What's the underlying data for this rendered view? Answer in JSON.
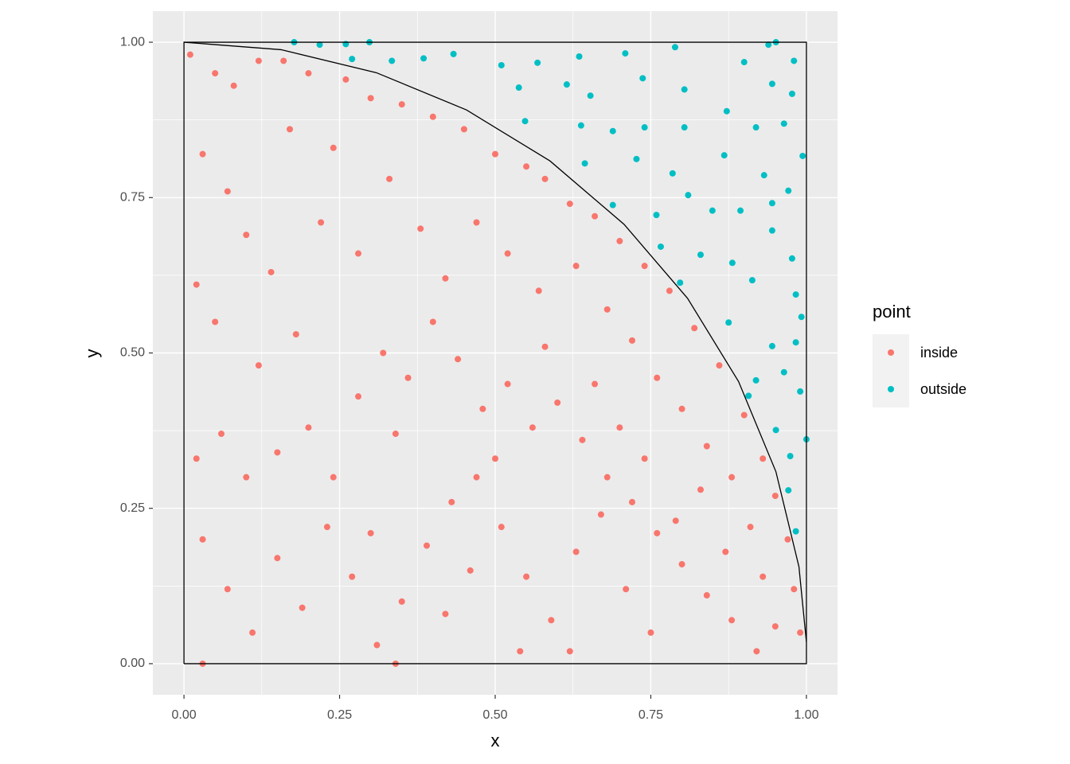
{
  "chart_data": {
    "type": "scatter",
    "x_label": "x",
    "y_label": "y",
    "xlim": [
      -0.05,
      1.05
    ],
    "ylim": [
      -0.05,
      1.05
    ],
    "xticks": [
      {
        "value": 0,
        "label": "0.00"
      },
      {
        "value": 0.25,
        "label": "0.25"
      },
      {
        "value": 0.5,
        "label": "0.50"
      },
      {
        "value": 0.75,
        "label": "0.75"
      },
      {
        "value": 1,
        "label": "1.00"
      }
    ],
    "yticks": [
      {
        "value": 0,
        "label": "0.00"
      },
      {
        "value": 0.25,
        "label": "0.25"
      },
      {
        "value": 0.5,
        "label": "0.50"
      },
      {
        "value": 0.75,
        "label": "0.75"
      },
      {
        "value": 1,
        "label": "1.00"
      }
    ],
    "x_minor_ticks": [
      0.125,
      0.375,
      0.625,
      0.875
    ],
    "y_minor_ticks": [
      0.125,
      0.375,
      0.625,
      0.875
    ],
    "grid": true,
    "legend_title": "point",
    "legend_position": "right",
    "paths": [
      {
        "color": "#000000",
        "x": [
          0,
          1,
          1,
          0,
          0
        ],
        "y": [
          0,
          0,
          1,
          1,
          0
        ]
      },
      {
        "color": "#000000",
        "x": [
          0,
          0.156,
          0.309,
          0.454,
          0.588,
          0.707,
          0.809,
          0.891,
          0.951,
          0.988,
          1
        ],
        "y": [
          1,
          0.988,
          0.951,
          0.891,
          0.809,
          0.707,
          0.588,
          0.454,
          0.309,
          0.156,
          0.035
        ]
      }
    ],
    "series": [
      {
        "name": "inside",
        "color": "#F8766D",
        "x": [
          0.01,
          0.05,
          0.08,
          0.12,
          0.16,
          0.2,
          0.26,
          0.3,
          0.35,
          0.4,
          0.45,
          0.5,
          0.55,
          0.58,
          0.62,
          0.66,
          0.7,
          0.74,
          0.78,
          0.82,
          0.86,
          0.9,
          0.93,
          0.95,
          0.97,
          0.98,
          0.99,
          0.03,
          0.07,
          0.1,
          0.14,
          0.02,
          0.05,
          0.12,
          0.18,
          0.22,
          0.28,
          0.33,
          0.24,
          0.17,
          0.38,
          0.42,
          0.47,
          0.52,
          0.57,
          0.63,
          0.68,
          0.72,
          0.76,
          0.8,
          0.84,
          0.88,
          0.91,
          0.93,
          0.95,
          0.02,
          0.06,
          0.1,
          0.15,
          0.2,
          0.24,
          0.28,
          0.32,
          0.36,
          0.4,
          0.44,
          0.48,
          0.52,
          0.56,
          0.6,
          0.64,
          0.68,
          0.72,
          0.76,
          0.8,
          0.84,
          0.88,
          0.92,
          0.03,
          0.07,
          0.11,
          0.15,
          0.19,
          0.23,
          0.27,
          0.31,
          0.35,
          0.39,
          0.43,
          0.47,
          0.51,
          0.55,
          0.59,
          0.63,
          0.67,
          0.71,
          0.75,
          0.79,
          0.83,
          0.87,
          0.3,
          0.34,
          0.42,
          0.46,
          0.5,
          0.58,
          0.62,
          0.66,
          0.7,
          0.74,
          0.54,
          0.34,
          0.03
        ],
        "values": [
          0.98,
          0.95,
          0.93,
          0.97,
          0.97,
          0.95,
          0.94,
          0.91,
          0.9,
          0.88,
          0.86,
          0.82,
          0.8,
          0.78,
          0.74,
          0.72,
          0.68,
          0.64,
          0.6,
          0.54,
          0.48,
          0.4,
          0.33,
          0.27,
          0.2,
          0.12,
          0.05,
          0.82,
          0.76,
          0.69,
          0.63,
          0.61,
          0.55,
          0.48,
          0.53,
          0.71,
          0.66,
          0.78,
          0.83,
          0.86,
          0.7,
          0.62,
          0.71,
          0.66,
          0.6,
          0.64,
          0.57,
          0.52,
          0.46,
          0.41,
          0.35,
          0.3,
          0.22,
          0.14,
          0.06,
          0.33,
          0.37,
          0.3,
          0.34,
          0.38,
          0.3,
          0.43,
          0.5,
          0.46,
          0.55,
          0.49,
          0.41,
          0.45,
          0.38,
          0.42,
          0.36,
          0.3,
          0.26,
          0.21,
          0.16,
          0.11,
          0.07,
          0.02,
          0.2,
          0.12,
          0.05,
          0.17,
          0.09,
          0.22,
          0.14,
          0.03,
          0.1,
          0.19,
          0.26,
          0.3,
          0.22,
          0.14,
          0.07,
          0.18,
          0.24,
          0.12,
          0.05,
          0.23,
          0.28,
          0.18,
          0.21,
          0.37,
          0.08,
          0.15,
          0.33,
          0.51,
          0.02,
          0.45,
          0.38,
          0.33,
          0.02,
          0.0,
          0.0
        ]
      },
      {
        "name": "outside",
        "color": "#00BFC4",
        "x": [
          0.177,
          0.218,
          0.26,
          0.298,
          0.27,
          0.334,
          0.385,
          0.433,
          0.51,
          0.568,
          0.635,
          0.709,
          0.789,
          0.939,
          0.951,
          0.98,
          0.9,
          0.538,
          0.615,
          0.653,
          0.737,
          0.804,
          0.872,
          0.945,
          0.977,
          0.548,
          0.638,
          0.689,
          0.74,
          0.804,
          0.919,
          0.964,
          0.644,
          0.727,
          0.785,
          0.868,
          0.932,
          0.994,
          0.689,
          0.759,
          0.81,
          0.849,
          0.894,
          0.945,
          0.971,
          0.766,
          0.83,
          0.881,
          0.945,
          0.977,
          0.797,
          0.913,
          0.983,
          0.875,
          0.992,
          0.945,
          0.983,
          0.919,
          0.964,
          0.907,
          0.99,
          1.0,
          0.951,
          0.974,
          0.971,
          0.983
        ],
        "values": [
          1.0,
          0.996,
          0.997,
          1.0,
          0.973,
          0.97,
          0.974,
          0.981,
          0.963,
          0.967,
          0.977,
          0.982,
          0.992,
          0.996,
          1.0,
          0.97,
          0.968,
          0.927,
          0.932,
          0.914,
          0.942,
          0.924,
          0.889,
          0.933,
          0.917,
          0.873,
          0.866,
          0.857,
          0.863,
          0.863,
          0.863,
          0.869,
          0.805,
          0.812,
          0.789,
          0.818,
          0.786,
          0.817,
          0.738,
          0.722,
          0.754,
          0.729,
          0.729,
          0.741,
          0.761,
          0.671,
          0.658,
          0.645,
          0.697,
          0.652,
          0.613,
          0.617,
          0.594,
          0.549,
          0.558,
          0.511,
          0.517,
          0.456,
          0.469,
          0.431,
          0.438,
          0.361,
          0.376,
          0.334,
          0.279,
          0.213
        ]
      }
    ]
  }
}
